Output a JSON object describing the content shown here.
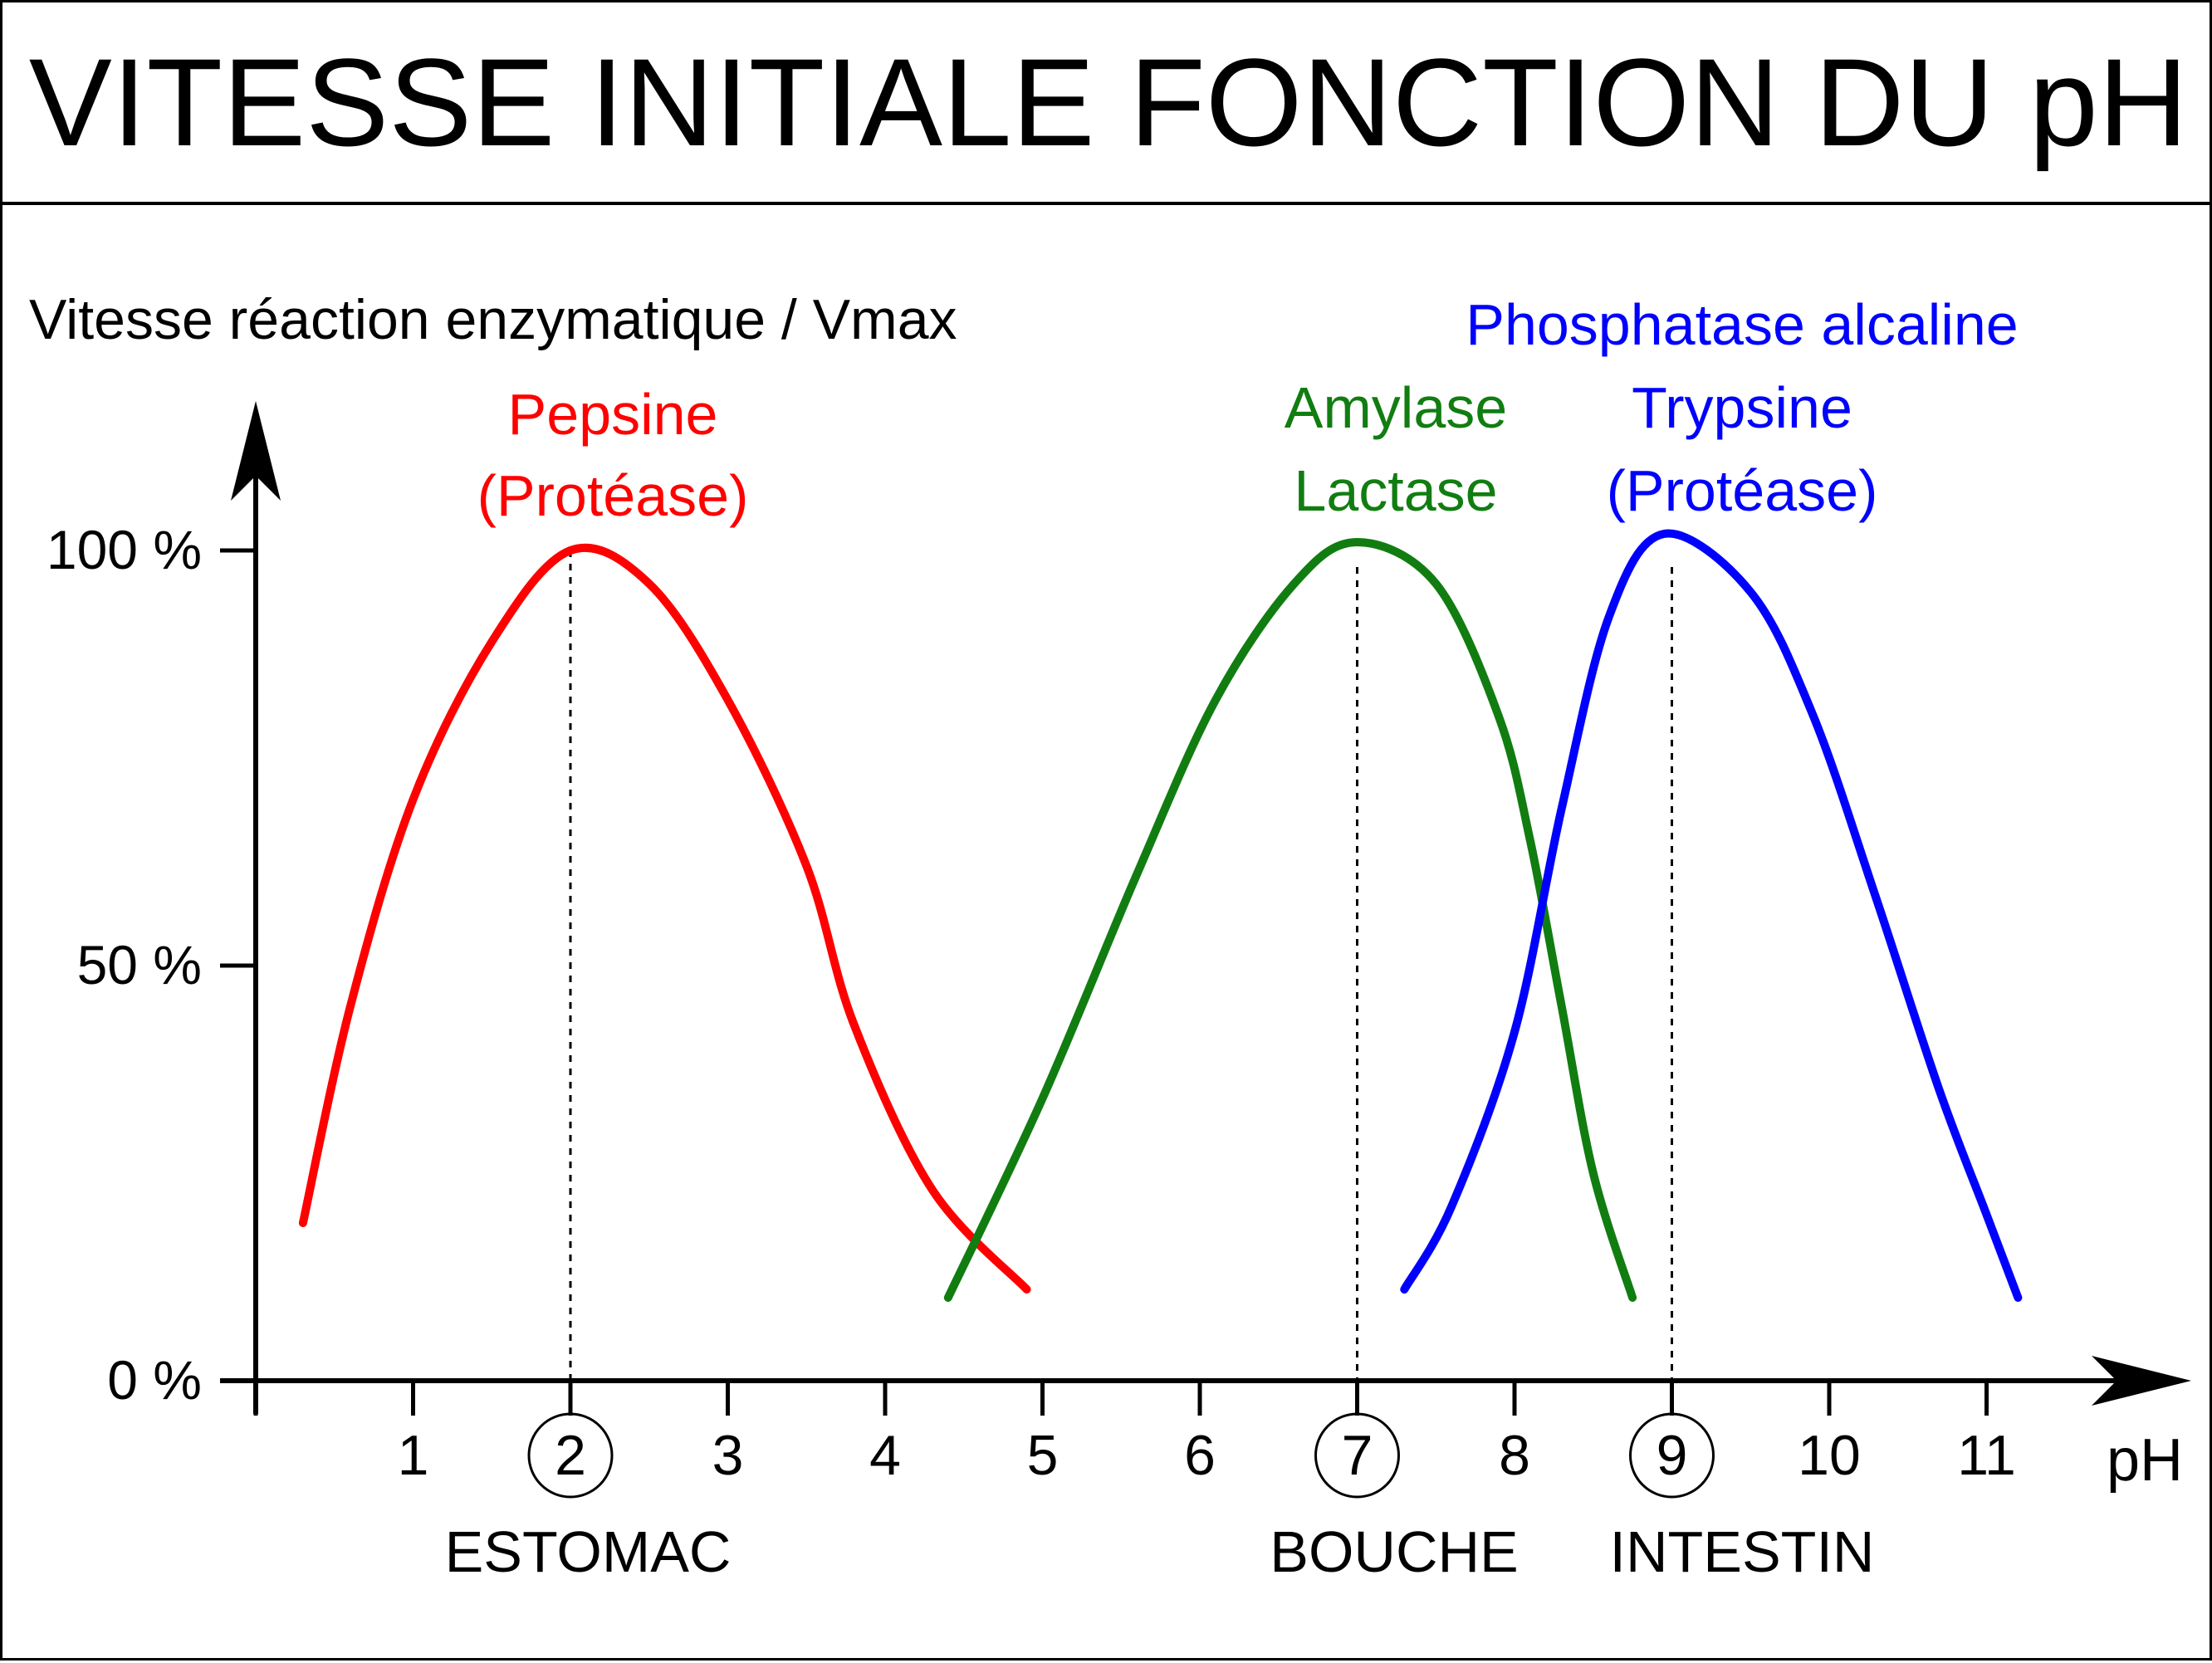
{
  "chart_data": {
    "type": "line",
    "title": "VITESSE INITIALE FONCTION DU pH",
    "ylabel": "Vitesse réaction enzymatique / Vmax",
    "xlabel": "pH",
    "xlim": [
      0,
      11.7
    ],
    "ylim": [
      0,
      100
    ],
    "x_ticks": [
      {
        "value": 1,
        "label": "1",
        "circled": false
      },
      {
        "value": 2,
        "label": "2",
        "circled": true
      },
      {
        "value": 3,
        "label": "3",
        "circled": false
      },
      {
        "value": 4,
        "label": "4",
        "circled": false
      },
      {
        "value": 5,
        "label": "5",
        "circled": false
      },
      {
        "value": 6,
        "label": "6",
        "circled": false
      },
      {
        "value": 7,
        "label": "7",
        "circled": true
      },
      {
        "value": 8,
        "label": "8",
        "circled": false
      },
      {
        "value": 9,
        "label": "9",
        "circled": true
      },
      {
        "value": 10,
        "label": "10",
        "circled": false
      },
      {
        "value": 11,
        "label": "11",
        "circled": false
      }
    ],
    "y_ticks": [
      {
        "value": 0,
        "label": "0 %"
      },
      {
        "value": 50,
        "label": "50 %"
      },
      {
        "value": 100,
        "label": "100 %"
      }
    ],
    "series": [
      {
        "key": "pepsine",
        "label_lines": [
          "Pepsine",
          "(Protéase)"
        ],
        "color": "#ff0000",
        "optimum_ph": 2,
        "points": [
          [
            0.3,
            19
          ],
          [
            0.6,
            45
          ],
          [
            1.0,
            70
          ],
          [
            1.5,
            89
          ],
          [
            2.0,
            100
          ],
          [
            2.5,
            96
          ],
          [
            3.0,
            82
          ],
          [
            3.5,
            62
          ],
          [
            3.8,
            43
          ],
          [
            4.3,
            23
          ],
          [
            4.9,
            11
          ]
        ]
      },
      {
        "key": "amylase",
        "label_lines": [
          "Amylase",
          "Lactase"
        ],
        "color": "#117d11",
        "optimum_ph": 7,
        "points": [
          [
            4.4,
            10
          ],
          [
            5.0,
            34
          ],
          [
            5.6,
            61
          ],
          [
            6.1,
            82
          ],
          [
            6.6,
            96
          ],
          [
            7.0,
            101
          ],
          [
            7.5,
            96
          ],
          [
            7.9,
            80
          ],
          [
            8.1,
            65
          ],
          [
            8.3,
            45
          ],
          [
            8.5,
            25
          ],
          [
            8.75,
            10
          ]
        ]
      },
      {
        "key": "trypsine",
        "label_lines": [
          "Phosphatase alcaline",
          "Trypsine",
          "(Protéase)"
        ],
        "color": "#0000ff",
        "optimum_ph": 9,
        "points": [
          [
            7.3,
            11
          ],
          [
            7.6,
            21
          ],
          [
            8.0,
            42
          ],
          [
            8.3,
            69
          ],
          [
            8.6,
            92
          ],
          [
            8.95,
            102
          ],
          [
            9.5,
            95
          ],
          [
            9.9,
            80
          ],
          [
            10.3,
            58
          ],
          [
            10.7,
            35
          ],
          [
            11.0,
            20
          ],
          [
            11.2,
            10
          ]
        ]
      }
    ],
    "annotations": [
      {
        "text": "ESTOMAC",
        "near_ph": 2
      },
      {
        "text": "BOUCHE",
        "near_ph": 7
      },
      {
        "text": "INTESTIN",
        "near_ph": 9
      }
    ],
    "grid": false,
    "legend": "labels above curves"
  }
}
